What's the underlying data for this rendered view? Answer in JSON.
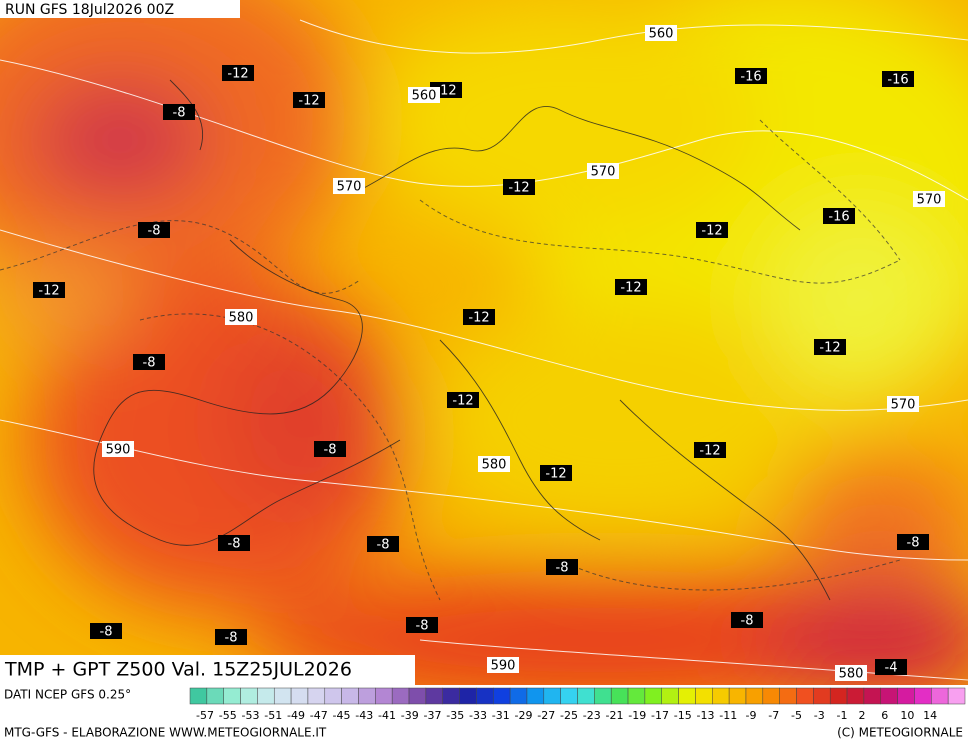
{
  "header": {
    "run": "RUN GFS 18Jul2026 00Z"
  },
  "map": {
    "temperature_labels": [
      -12,
      -12,
      -12,
      -16,
      -16,
      -8,
      -12,
      -8,
      -16,
      -12,
      -12,
      -12,
      -12,
      -12,
      -8,
      -12,
      -8,
      -12,
      -12,
      -8,
      -8,
      -8,
      -8,
      -8,
      -8,
      -8,
      -8,
      -4
    ],
    "height_labels": [
      560,
      560,
      570,
      570,
      570,
      580,
      570,
      590,
      580,
      590,
      580
    ]
  },
  "title": "TMP + GPT Z500 Val. 15Z25JUL2026",
  "legend": {
    "source": "DATI NCEP GFS 0.25°",
    "ticks": [
      -57,
      -55,
      -53,
      -51,
      -49,
      -47,
      -45,
      -43,
      -41,
      -39,
      -37,
      -35,
      -33,
      -31,
      -29,
      -27,
      -25,
      -23,
      -21,
      -19,
      -17,
      -15,
      -13,
      -11,
      -9,
      -7,
      -5,
      -3,
      -1,
      2,
      6,
      10,
      14
    ]
  },
  "footer": {
    "credit": "MTG-GFS - ELABORAZIONE WWW.METEOGIORNALE.IT",
    "copyright": "(C) METEOGIORNALE"
  }
}
